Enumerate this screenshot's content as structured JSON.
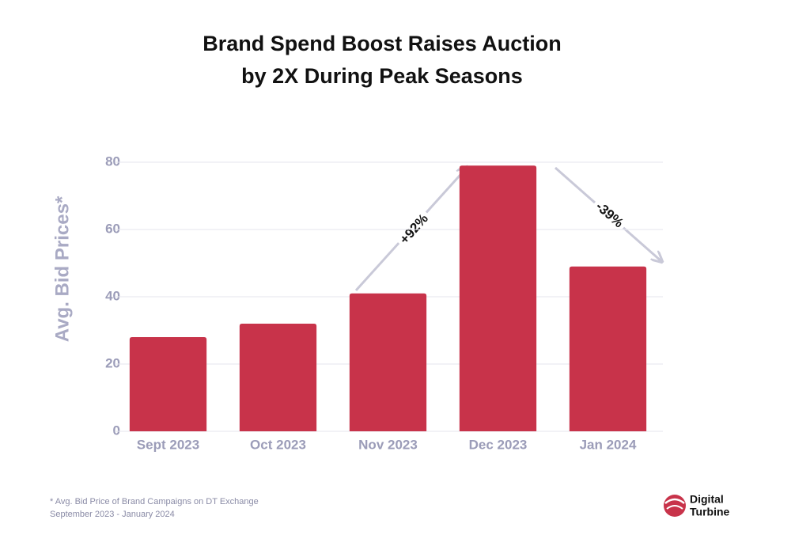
{
  "chart_data": {
    "type": "bar",
    "title": [
      "Brand Spend Boost Raises Auction",
      "by 2X During Peak Seasons"
    ],
    "y_label": "Avg. Bid Prices*",
    "categories": [
      "Sept 2023",
      "Oct 2023",
      "Nov 2023",
      "Dec 2023",
      "Jan 2024"
    ],
    "values": [
      28,
      32,
      41,
      79,
      49
    ],
    "color": "#c8334a",
    "ylim": [
      0,
      80
    ],
    "yticks": [
      0,
      20,
      40,
      60,
      80
    ],
    "grid": true,
    "annotations": [
      "+92%",
      "-39%"
    ]
  },
  "footnote": [
    "* Avg. Bid Price of Brand Campaigns on DT Exchange",
    "September 2023 - January 2024"
  ],
  "logo": [
    "Digital",
    "Turbine"
  ]
}
